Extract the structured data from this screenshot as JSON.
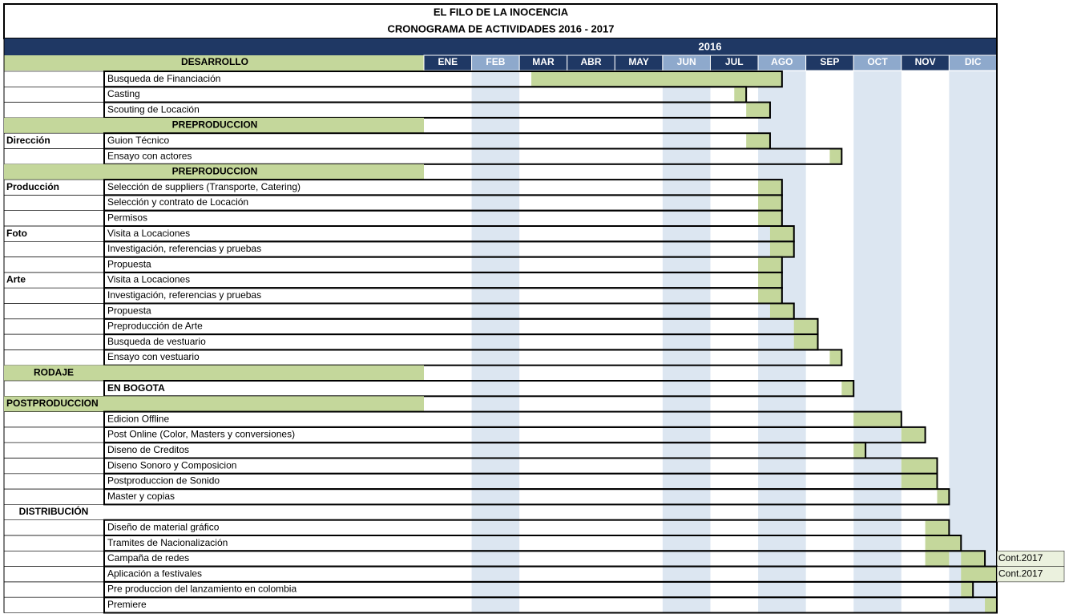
{
  "title": "EL FILO DE LA INOCENCIA",
  "subtitle": "CRONOGRAMA DE ACTIVIDADES 2016 - 2017",
  "year": "2016",
  "header": "DESARROLLO",
  "months": [
    {
      "label": "ENE",
      "shaded": false
    },
    {
      "label": "FEB",
      "shaded": true
    },
    {
      "label": "MAR",
      "shaded": false
    },
    {
      "label": "ABR",
      "shaded": false
    },
    {
      "label": "MAY",
      "shaded": false
    },
    {
      "label": "JUN",
      "shaded": true
    },
    {
      "label": "JUL",
      "shaded": false
    },
    {
      "label": "AGO",
      "shaded": true
    },
    {
      "label": "SEP",
      "shaded": false
    },
    {
      "label": "OCT",
      "shaded": true
    },
    {
      "label": "NOV",
      "shaded": false
    },
    {
      "label": "DIC",
      "shaded": true
    }
  ],
  "rows": [
    {
      "kind": "task",
      "task": "Busqueda de Financiación",
      "bars": [
        [
          2.25,
          7.5
        ]
      ]
    },
    {
      "kind": "task",
      "task": "Casting",
      "bars": [
        [
          6.5,
          6.75
        ]
      ]
    },
    {
      "kind": "task",
      "task": "Scouting de Locación",
      "bars": [
        [
          6.75,
          7.25
        ]
      ]
    },
    {
      "kind": "section",
      "label": "PREPRODUCCION",
      "fill": true,
      "align": "wide"
    },
    {
      "kind": "task",
      "group": "Dirección",
      "task": "Guion Técnico",
      "bars": [
        [
          6.75,
          7.25
        ]
      ]
    },
    {
      "kind": "task",
      "task": "Ensayo con actores",
      "bars": [
        [
          8.5,
          8.75
        ]
      ]
    },
    {
      "kind": "section",
      "label": "PREPRODUCCION",
      "fill": true,
      "align": "wide"
    },
    {
      "kind": "task",
      "group": "Producción",
      "task": "Selección de suppliers (Transporte, Catering)",
      "bars": [
        [
          7,
          7.5
        ]
      ]
    },
    {
      "kind": "task",
      "task": "Selección y contrato de Locación",
      "bars": [
        [
          7,
          7.5
        ]
      ]
    },
    {
      "kind": "task",
      "task": "Permisos",
      "bars": [
        [
          7,
          7.5
        ]
      ]
    },
    {
      "kind": "task",
      "group": "Foto",
      "task": "Visita a Locaciones",
      "bars": [
        [
          7.25,
          7.75
        ]
      ]
    },
    {
      "kind": "task",
      "task": "Investigación, referencias y pruebas",
      "bars": [
        [
          7.25,
          7.75
        ]
      ]
    },
    {
      "kind": "task",
      "task": "Propuesta",
      "bars": [
        [
          7,
          7.5
        ]
      ]
    },
    {
      "kind": "task",
      "group": "Arte",
      "task": "Visita a Locaciones",
      "bars": [
        [
          7,
          7.5
        ]
      ]
    },
    {
      "kind": "task",
      "task": "Investigación, referencias y pruebas",
      "bars": [
        [
          7,
          7.5
        ]
      ]
    },
    {
      "kind": "task",
      "task": "Propuesta",
      "bars": [
        [
          7.25,
          7.75
        ]
      ]
    },
    {
      "kind": "task",
      "task": "Preproducción de Arte",
      "bars": [
        [
          7.75,
          8.25
        ]
      ]
    },
    {
      "kind": "task",
      "task": "Busqueda de vestuario",
      "bars": [
        [
          7.75,
          8.25
        ]
      ]
    },
    {
      "kind": "task",
      "task": "Ensayo con vestuario",
      "bars": [
        [
          8.5,
          8.75
        ]
      ]
    },
    {
      "kind": "section",
      "label": "RODAJE",
      "fill": true,
      "align": "narrow"
    },
    {
      "kind": "task",
      "task": "EN BOGOTA",
      "bold": true,
      "bars": [
        [
          8.75,
          9
        ]
      ]
    },
    {
      "kind": "section",
      "label": "POSTPRODUCCION",
      "fill": true,
      "align": "start"
    },
    {
      "kind": "task",
      "task": "Edicion Offline",
      "bars": [
        [
          9,
          10
        ]
      ]
    },
    {
      "kind": "task",
      "task": "Post Online (Color, Masters y conversiones)",
      "bars": [
        [
          10,
          10.5
        ]
      ]
    },
    {
      "kind": "task",
      "task": "Diseno de Creditos",
      "bars": [
        [
          9,
          9.25
        ]
      ]
    },
    {
      "kind": "task",
      "task": "Diseno Sonoro y Composicion",
      "bars": [
        [
          10,
          10.75
        ]
      ]
    },
    {
      "kind": "task",
      "task": "Postproduccion de Sonido",
      "bars": [
        [
          10,
          10.75
        ]
      ]
    },
    {
      "kind": "task",
      "task": "Master y copias",
      "bars": [
        [
          10.75,
          11
        ]
      ]
    },
    {
      "kind": "section",
      "label": "DISTRIBUCIÓN",
      "fill": false,
      "align": "narrow"
    },
    {
      "kind": "task",
      "task": "Diseño de material gráfico",
      "bars": [
        [
          10.5,
          11
        ]
      ]
    },
    {
      "kind": "task",
      "task": "Tramites de Nacionalización",
      "bars": [
        [
          10.5,
          11.25
        ]
      ]
    },
    {
      "kind": "task",
      "task": "Campaña de redes",
      "bars": [
        [
          10.5,
          11
        ],
        [
          11.25,
          11.75
        ]
      ],
      "note": "Cont.2017"
    },
    {
      "kind": "task",
      "task": "Aplicación a festivales",
      "bars": [
        [
          11.25,
          12
        ]
      ],
      "note": "Cont.2017"
    },
    {
      "kind": "task",
      "task": "Pre produccion del lanzamiento en colombia",
      "bars": [
        [
          11.25,
          11.5
        ]
      ]
    },
    {
      "kind": "task",
      "task": "Premiere",
      "bars": [
        [
          11.75,
          12
        ]
      ]
    }
  ]
}
